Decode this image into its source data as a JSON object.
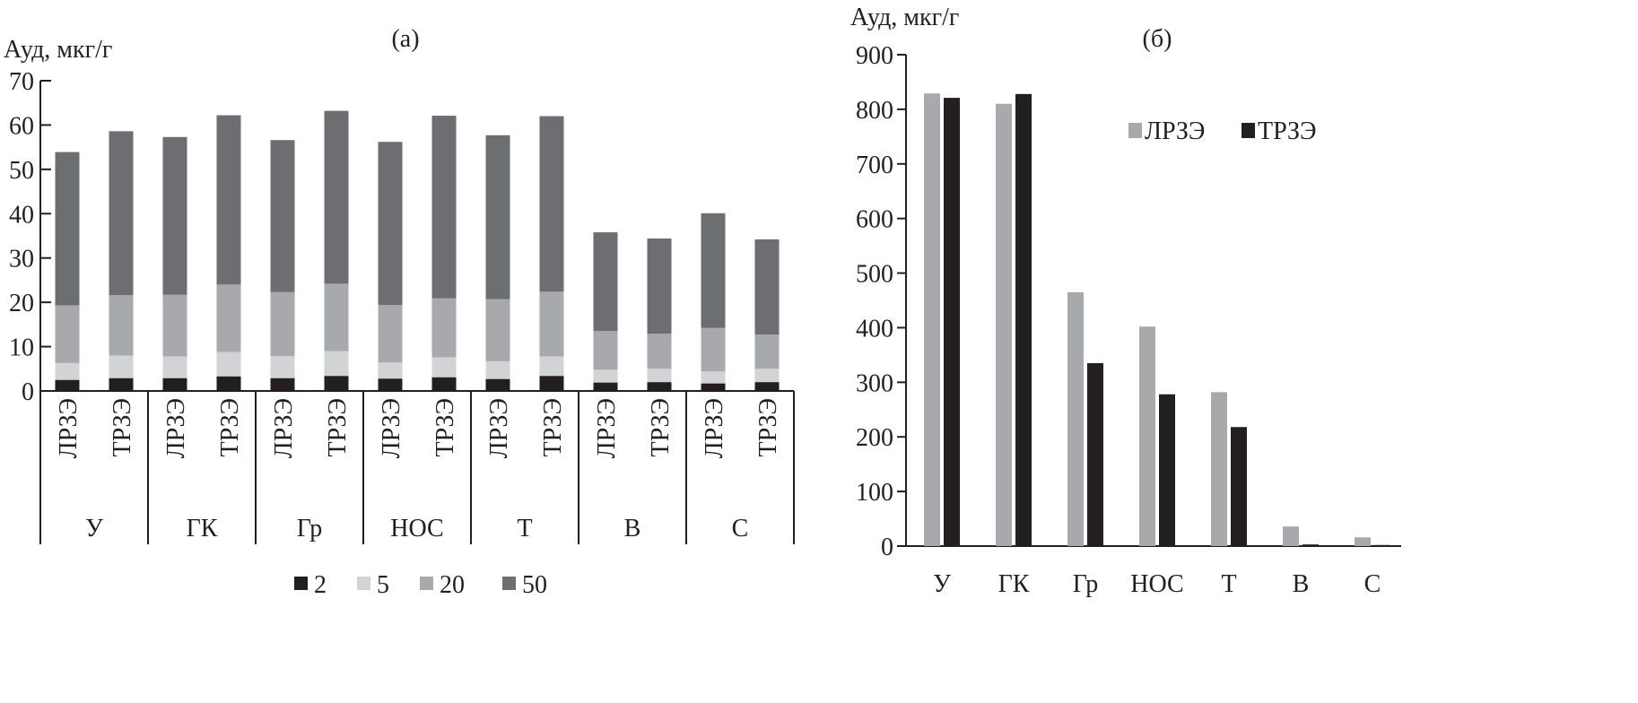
{
  "chart_data": [
    {
      "type": "bar",
      "stacked": true,
      "title": "(а)",
      "ylabel": "Ауд, мкг/г",
      "ylim": [
        0,
        70
      ],
      "yticks": [
        0,
        10,
        20,
        30,
        40,
        50,
        60,
        70
      ],
      "groups": [
        "У",
        "ГК",
        "Гр",
        "НОС",
        "Т",
        "В",
        "С"
      ],
      "subcategories": [
        "ЛРЗЭ",
        "ТРЗЭ"
      ],
      "legend_position": "bottom",
      "series": [
        {
          "name": "2",
          "color": "#231f20",
          "values": [
            [
              2.5,
              2.9
            ],
            [
              2.9,
              3.3
            ],
            [
              2.9,
              3.4
            ],
            [
              2.8,
              3.1
            ],
            [
              2.7,
              3.4
            ],
            [
              1.9,
              2.0
            ],
            [
              1.7,
              2.0
            ]
          ]
        },
        {
          "name": "5",
          "color": "#d1d3d4",
          "values": [
            [
              3.8,
              5.1
            ],
            [
              4.9,
              5.5
            ],
            [
              5.0,
              5.6
            ],
            [
              3.6,
              4.5
            ],
            [
              4.0,
              4.4
            ],
            [
              2.9,
              3.0
            ],
            [
              2.7,
              3.0
            ]
          ]
        },
        {
          "name": "20",
          "color": "#a7a9ac",
          "values": [
            [
              13.0,
              13.6
            ],
            [
              13.9,
              15.2
            ],
            [
              14.4,
              15.2
            ],
            [
              13.0,
              13.3
            ],
            [
              14.0,
              14.6
            ],
            [
              8.7,
              7.9
            ],
            [
              9.8,
              7.7
            ]
          ]
        },
        {
          "name": "50",
          "color": "#6d6e71",
          "values": [
            [
              34.6,
              37.0
            ],
            [
              35.6,
              38.2
            ],
            [
              34.3,
              39.0
            ],
            [
              36.8,
              41.2
            ],
            [
              37.0,
              39.6
            ],
            [
              22.3,
              21.5
            ],
            [
              25.9,
              21.5
            ]
          ]
        }
      ]
    },
    {
      "type": "bar",
      "title": "(б)",
      "ylabel": "Ауд, мкг/г",
      "ylim": [
        0,
        900
      ],
      "yticks": [
        0,
        100,
        200,
        300,
        400,
        500,
        600,
        700,
        800,
        900
      ],
      "categories": [
        "У",
        "ГК",
        "Гр",
        "НОС",
        "Т",
        "В",
        "С"
      ],
      "legend_position": "top-right",
      "series": [
        {
          "name": "ЛРЗЭ",
          "color": "#a7a9ac",
          "values": [
            829,
            810,
            465,
            402,
            282,
            36,
            16
          ]
        },
        {
          "name": "ТРЗЭ",
          "color": "#231f20",
          "values": [
            821,
            828,
            335,
            278,
            218,
            3,
            2
          ]
        }
      ]
    }
  ]
}
